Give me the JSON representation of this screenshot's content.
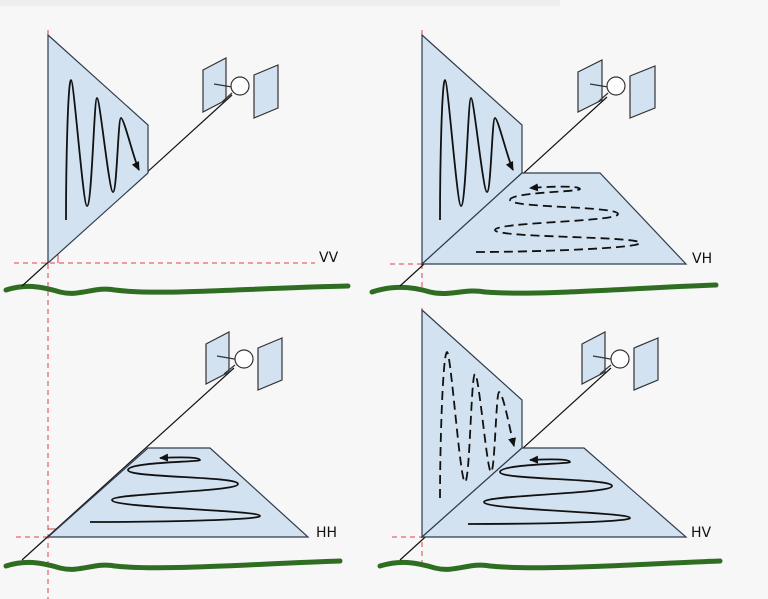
{
  "diagram": {
    "colors": {
      "background": "#f7f7f7",
      "plane_fill": "#d3e2f1",
      "plane_stroke": "#2f3d4e",
      "ground": "#2f6e22",
      "guide": "#d9454a",
      "satellite_fill": "#d3e2f1"
    },
    "icons": [
      "satellite-icon",
      "ground-line",
      "wave-arrow"
    ],
    "panels": [
      {
        "label": "VV",
        "transmit": "vertical",
        "receive": "vertical"
      },
      {
        "label": "VH",
        "transmit": "vertical",
        "receive": "horizontal"
      },
      {
        "label": "HH",
        "transmit": "horizontal",
        "receive": "horizontal"
      },
      {
        "label": "HV",
        "transmit": "horizontal",
        "receive": "vertical"
      }
    ]
  }
}
